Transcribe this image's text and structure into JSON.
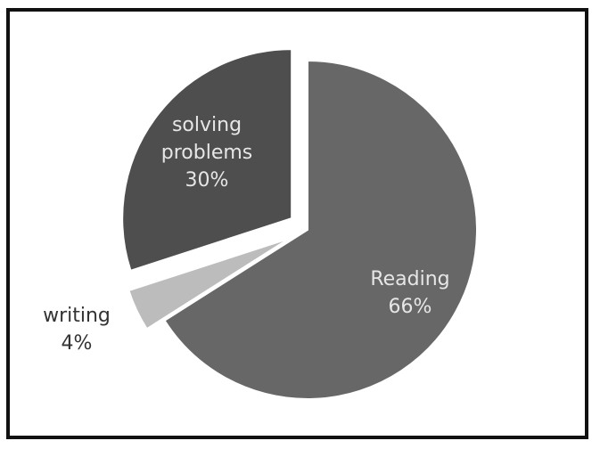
{
  "chart_data": {
    "type": "pie",
    "title": "",
    "legend": "none",
    "slices": [
      {
        "name": "Reading",
        "value": 66,
        "label": "66%",
        "color": "#676767",
        "label_color": "#e6e6e6",
        "exploded": false
      },
      {
        "name": "writing",
        "value": 4,
        "label": "4%",
        "color": "#bcbcbc",
        "label_color": "#333333",
        "exploded": true
      },
      {
        "name": "solving problems",
        "value": 30,
        "label": "30%",
        "color": "#4e4e4e",
        "label_color": "#e6e6e6",
        "exploded": true
      }
    ]
  }
}
